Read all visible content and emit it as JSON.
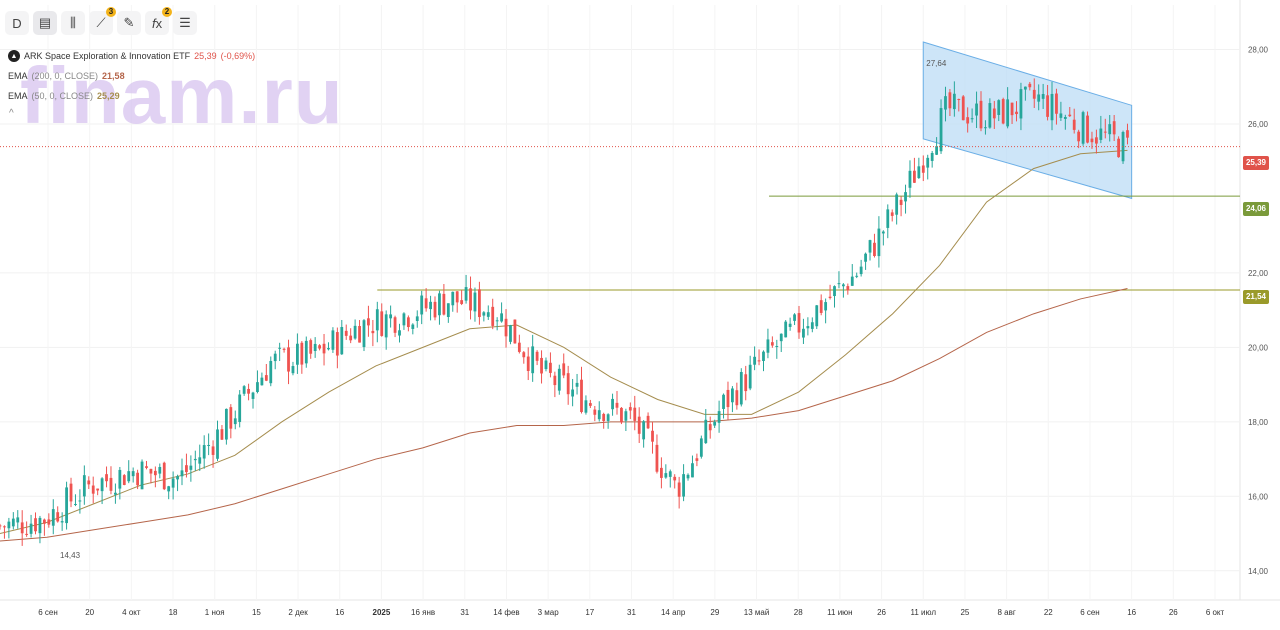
{
  "toolbar": {
    "interval_label": "D",
    "indicators_badge": "3",
    "functions_badge": "2"
  },
  "legend": {
    "symbol_title": "ARK Space Exploration & Innovation ETF",
    "price": "25,39",
    "change": "(-0,69%)",
    "ema200_label": "EMA",
    "ema200_params": "(200, 0, CLOSE)",
    "ema200_value": "21,58",
    "ema50_label": "EMA",
    "ema50_params": "(50, 0, CLOSE)",
    "ema50_value": "25,29",
    "collapse": "^"
  },
  "watermark": "finam.ru",
  "price_labels": {
    "last": "25,39",
    "level_upper": "24,06",
    "level_lower": "21,54"
  },
  "annotations": {
    "high_label": "27,64",
    "low_label": "14,43"
  },
  "colors": {
    "up": "#26a69a",
    "down": "#ef5350",
    "ema200": "#b5654a",
    "ema50": "#a58d4e",
    "level_upper": "#7a9a3a",
    "level_lower": "#9a9a2a",
    "channel_fill": "#bcdcf5",
    "channel_line": "#6aaee6",
    "last_price": "#e0534a"
  },
  "chart_data": {
    "type": "candlestick",
    "x_ticks": [
      "6 сен",
      "20",
      "4 окт",
      "18",
      "1 ноя",
      "15",
      "2 дек",
      "16",
      "2025",
      "16 янв",
      "31",
      "14 фев",
      "3 мар",
      "17",
      "31",
      "14 апр",
      "29",
      "13 май",
      "28",
      "11 июн",
      "26",
      "11 июл",
      "25",
      "8 авг",
      "22",
      "6 сен",
      "16",
      "26",
      "6 окт"
    ],
    "y_ticks": [
      "28,00",
      "26,00",
      "22,00",
      "20,00",
      "18,00",
      "16,00",
      "14,00"
    ],
    "ylim": [
      13.0,
      28.5
    ],
    "last_price": 25.39,
    "horizontal_levels": [
      24.06,
      21.54
    ],
    "close_path": [
      [
        "6 сен",
        15.2
      ],
      [
        "20",
        15.4
      ],
      [
        "4 окт",
        16.3
      ],
      [
        "18",
        16.7
      ],
      [
        "1 ноя",
        16.5
      ],
      [
        "15",
        17.9
      ],
      [
        "2 дек",
        19.6
      ],
      [
        "16",
        19.8
      ],
      [
        "2025",
        20.6
      ],
      [
        "16 янв",
        20.9
      ],
      [
        "31",
        21.3
      ],
      [
        "14 фев",
        21.0
      ],
      [
        "3 мар",
        19.3
      ],
      [
        "17",
        18.6
      ],
      [
        "31",
        18.1
      ],
      [
        "14 апр",
        16.2
      ],
      [
        "29",
        18.4
      ],
      [
        "13 май",
        19.8
      ],
      [
        "28",
        20.9
      ],
      [
        "11 июн",
        22.0
      ],
      [
        "26",
        24.0
      ],
      [
        "11 июл",
        26.4
      ],
      [
        "25",
        26.2
      ],
      [
        "8 авг",
        26.7
      ],
      [
        "22",
        25.9
      ],
      [
        "6 сен",
        25.39
      ]
    ],
    "ema50": [
      [
        15.0
      ],
      [
        15.3
      ],
      [
        15.8
      ],
      [
        16.3
      ],
      [
        16.6
      ],
      [
        17.1
      ],
      [
        18.0
      ],
      [
        18.8
      ],
      [
        19.5
      ],
      [
        20.0
      ],
      [
        20.5
      ],
      [
        20.6
      ],
      [
        20.0
      ],
      [
        19.2
      ],
      [
        18.6
      ],
      [
        18.2
      ],
      [
        18.2
      ],
      [
        18.8
      ],
      [
        19.8
      ],
      [
        20.9
      ],
      [
        22.2
      ],
      [
        23.9
      ],
      [
        24.8
      ],
      [
        25.2
      ],
      [
        25.29
      ]
    ],
    "ema200": [
      [
        14.8
      ],
      [
        14.9
      ],
      [
        15.1
      ],
      [
        15.3
      ],
      [
        15.5
      ],
      [
        15.8
      ],
      [
        16.2
      ],
      [
        16.6
      ],
      [
        17.0
      ],
      [
        17.3
      ],
      [
        17.7
      ],
      [
        17.9
      ],
      [
        17.9
      ],
      [
        18.0
      ],
      [
        18.0
      ],
      [
        18.0
      ],
      [
        18.1
      ],
      [
        18.3
      ],
      [
        18.7
      ],
      [
        19.1
      ],
      [
        19.7
      ],
      [
        20.4
      ],
      [
        20.9
      ],
      [
        21.3
      ],
      [
        21.58
      ]
    ],
    "channel": {
      "upper_start": 28.2,
      "upper_end": 26.5,
      "lower_start": 25.6,
      "lower_end": 24.0,
      "from": "11 июл",
      "to": "16"
    },
    "annotations": [
      {
        "label": "27,64",
        "value": 27.64
      },
      {
        "label": "14,43",
        "value": 14.43
      }
    ]
  }
}
